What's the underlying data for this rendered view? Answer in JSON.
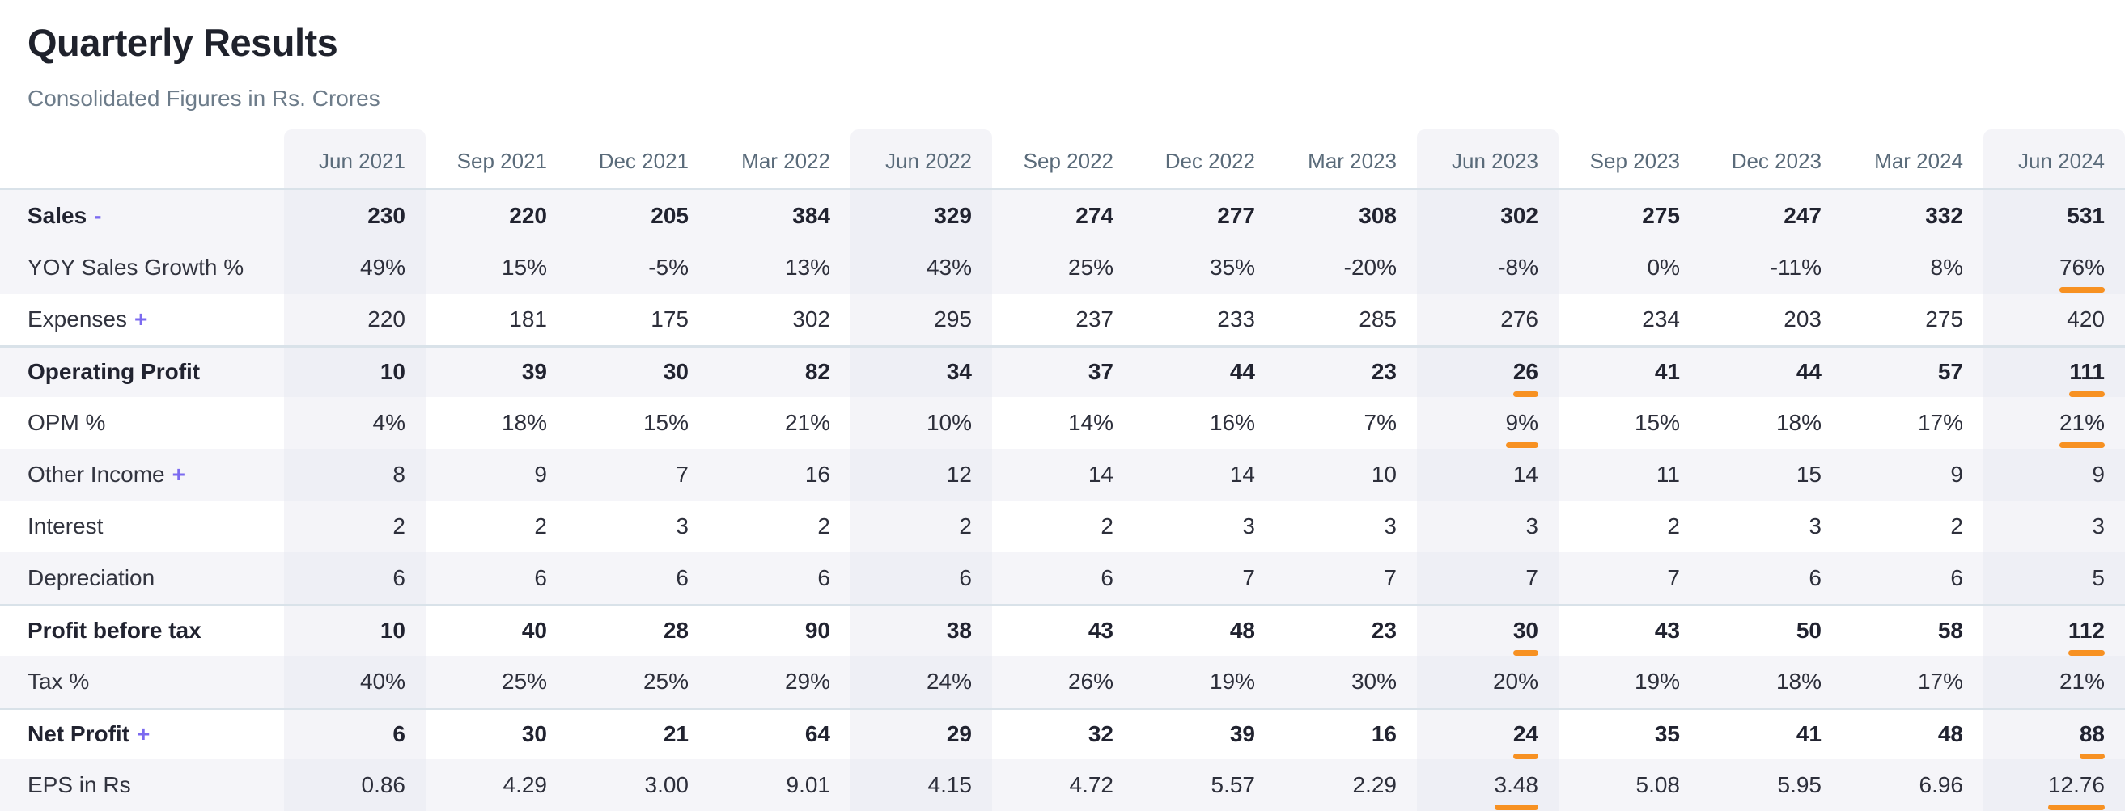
{
  "header": {
    "title": "Quarterly Results",
    "subtitle": "Consolidated Figures in Rs. Crores"
  },
  "chart_data": {
    "type": "table",
    "title": "Quarterly Results",
    "unit": "Rs. Crores",
    "columns": [
      "Jun 2021",
      "Sep 2021",
      "Dec 2021",
      "Mar 2022",
      "Jun 2022",
      "Sep 2022",
      "Dec 2022",
      "Mar 2023",
      "Jun 2023",
      "Sep 2023",
      "Dec 2023",
      "Mar 2024",
      "Jun 2024"
    ],
    "highlight_columns": [
      0,
      4,
      8,
      12
    ],
    "rows": [
      {
        "label": "Sales",
        "toggle": "-",
        "bold": true,
        "underline": [],
        "values": [
          "230",
          "220",
          "205",
          "384",
          "329",
          "274",
          "277",
          "308",
          "302",
          "275",
          "247",
          "332",
          "531"
        ]
      },
      {
        "label": "YOY Sales Growth %",
        "toggle": null,
        "bold": false,
        "underline": [
          12
        ],
        "values": [
          "49%",
          "15%",
          "-5%",
          "13%",
          "43%",
          "25%",
          "35%",
          "-20%",
          "-8%",
          "0%",
          "-11%",
          "8%",
          "76%"
        ]
      },
      {
        "label": "Expenses",
        "toggle": "+",
        "bold": false,
        "underline": [],
        "values": [
          "220",
          "181",
          "175",
          "302",
          "295",
          "237",
          "233",
          "285",
          "276",
          "234",
          "203",
          "275",
          "420"
        ]
      },
      {
        "label": "Operating Profit",
        "toggle": null,
        "bold": true,
        "underline": [
          8,
          12
        ],
        "values": [
          "10",
          "39",
          "30",
          "82",
          "34",
          "37",
          "44",
          "23",
          "26",
          "41",
          "44",
          "57",
          "111"
        ]
      },
      {
        "label": "OPM %",
        "toggle": null,
        "bold": false,
        "underline": [
          8,
          12
        ],
        "values": [
          "4%",
          "18%",
          "15%",
          "21%",
          "10%",
          "14%",
          "16%",
          "7%",
          "9%",
          "15%",
          "18%",
          "17%",
          "21%"
        ]
      },
      {
        "label": "Other Income",
        "toggle": "+",
        "bold": false,
        "underline": [],
        "values": [
          "8",
          "9",
          "7",
          "16",
          "12",
          "14",
          "14",
          "10",
          "14",
          "11",
          "15",
          "9",
          "9"
        ]
      },
      {
        "label": "Interest",
        "toggle": null,
        "bold": false,
        "underline": [],
        "values": [
          "2",
          "2",
          "3",
          "2",
          "2",
          "2",
          "3",
          "3",
          "3",
          "2",
          "3",
          "2",
          "3"
        ]
      },
      {
        "label": "Depreciation",
        "toggle": null,
        "bold": false,
        "underline": [],
        "values": [
          "6",
          "6",
          "6",
          "6",
          "6",
          "6",
          "7",
          "7",
          "7",
          "7",
          "6",
          "6",
          "5"
        ]
      },
      {
        "label": "Profit before tax",
        "toggle": null,
        "bold": true,
        "underline": [
          8,
          12
        ],
        "values": [
          "10",
          "40",
          "28",
          "90",
          "38",
          "43",
          "48",
          "23",
          "30",
          "43",
          "50",
          "58",
          "112"
        ]
      },
      {
        "label": "Tax %",
        "toggle": null,
        "bold": false,
        "underline": [],
        "values": [
          "40%",
          "25%",
          "25%",
          "29%",
          "24%",
          "26%",
          "19%",
          "30%",
          "20%",
          "19%",
          "18%",
          "17%",
          "21%"
        ]
      },
      {
        "label": "Net Profit",
        "toggle": "+",
        "bold": true,
        "underline": [
          8,
          12
        ],
        "values": [
          "6",
          "30",
          "21",
          "64",
          "29",
          "32",
          "39",
          "16",
          "24",
          "35",
          "41",
          "48",
          "88"
        ]
      },
      {
        "label": "EPS in Rs",
        "toggle": null,
        "bold": false,
        "underline": [
          8,
          12
        ],
        "values": [
          "0.86",
          "4.29",
          "3.00",
          "9.01",
          "4.15",
          "4.72",
          "5.57",
          "2.29",
          "3.48",
          "5.08",
          "5.95",
          "6.96",
          "12.76"
        ]
      }
    ]
  },
  "colors": {
    "accent_purple": "#7b6af0",
    "highlight_orange": "#f79122",
    "row_stripe": "#f5f5f9",
    "column_highlight": "#f4f4f8",
    "divider": "#d9e2e9",
    "header_text": "#5a6b7a",
    "body_text": "#2d2f3b"
  }
}
